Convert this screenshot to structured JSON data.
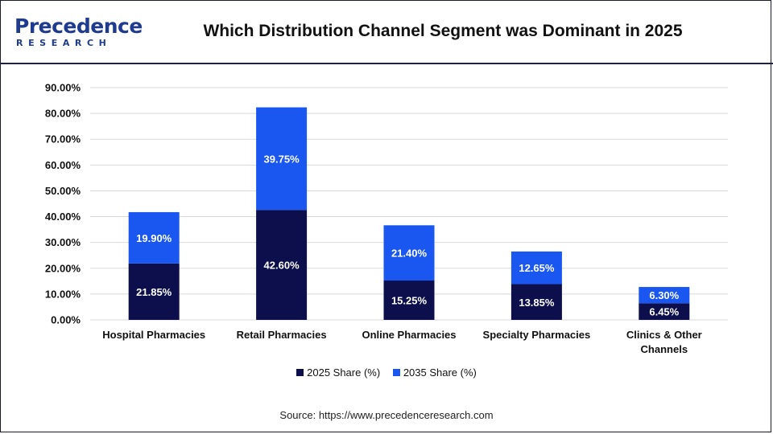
{
  "logo": {
    "word": "Precedence",
    "sub": "RESEARCH"
  },
  "title": "Which Distribution Channel Segment was Dominant in 2025",
  "source": "Source: https://www.precedenceresearch.com",
  "colors": {
    "s2025": "#0c0f4c",
    "s2035": "#1a57f0",
    "grid": "#d9d9d9",
    "logo": "#1f3b8f"
  },
  "chart_data": {
    "type": "bar",
    "stacked": true,
    "categories": [
      "Hospital Pharmacies",
      "Retail Pharmacies",
      "Online Pharmacies",
      "Specialty Pharmacies",
      "Clinics & Other Channels"
    ],
    "category_lines": [
      [
        "Hospital Pharmacies"
      ],
      [
        "Retail Pharmacies"
      ],
      [
        "Online Pharmacies"
      ],
      [
        "Specialty Pharmacies"
      ],
      [
        "Clinics & Other",
        "Channels"
      ]
    ],
    "series": [
      {
        "name": "2025 Share (%)",
        "values": [
          21.85,
          42.6,
          15.25,
          13.85,
          6.45
        ],
        "labels": [
          "21.85%",
          "42.60%",
          "15.25%",
          "13.85%",
          "6.45%"
        ]
      },
      {
        "name": "2035 Share (%)",
        "values": [
          19.9,
          39.75,
          21.4,
          12.65,
          6.3
        ],
        "labels": [
          "19.90%",
          "39.75%",
          "21.40%",
          "12.65%",
          "6.30%"
        ]
      }
    ],
    "ylim": [
      0,
      90
    ],
    "yticks": [
      "0.00%",
      "10.00%",
      "20.00%",
      "30.00%",
      "40.00%",
      "50.00%",
      "60.00%",
      "70.00%",
      "80.00%",
      "90.00%"
    ],
    "grid": true,
    "legend": "bottom"
  }
}
